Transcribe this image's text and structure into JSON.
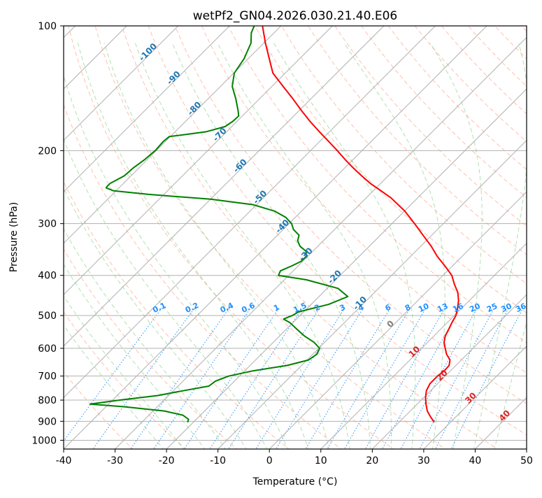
{
  "chart_data": {
    "type": "line",
    "title": "wetPf2_GN04.2026.030.21.40.E06",
    "xlabel": "Temperature (°C)",
    "ylabel": "Pressure (hPa)",
    "xlim": [
      -40,
      50
    ],
    "ylim_hpa": [
      1050,
      100
    ],
    "y_scale": "log",
    "grid": true,
    "x_ticks": [
      -40,
      -30,
      -20,
      -10,
      0,
      10,
      20,
      30,
      40,
      50
    ],
    "y_ticks": [
      100,
      200,
      300,
      400,
      500,
      600,
      700,
      800,
      900,
      1000
    ],
    "skew": "skew-T (isotherms slanted 45°)",
    "colors": {
      "temperature": "#ff0000",
      "dewpoint": "#008000",
      "isotherm": "#b0b0b0",
      "dry_adiabat": "#ff8c69",
      "moist_adiabat": "#7ccd7c",
      "mixing_ratio": "#1e90ff",
      "isotherm_label": "#1f77b4",
      "adiabat_label": "#d62728"
    },
    "series": [
      {
        "name": "",
        "kind": "temperature",
        "pressure_hpa": [
          904,
          880,
          850,
          820,
          790,
          760,
          730,
          700,
          680,
          660,
          640,
          620,
          600,
          580,
          560,
          540,
          520,
          500,
          480,
          460,
          440,
          420,
          400,
          380,
          360,
          340,
          320,
          300,
          280,
          260,
          250,
          240,
          230,
          220,
          210,
          200,
          190,
          180,
          170,
          160,
          150,
          140,
          130,
          120,
          110,
          100
        ],
        "temp_c": [
          26.8,
          25.2,
          23.3,
          21.8,
          20.4,
          19.2,
          18.5,
          18.5,
          18.8,
          18.7,
          17.8,
          16.0,
          14.6,
          13.2,
          12.2,
          11.6,
          10.9,
          10.3,
          9.2,
          7.9,
          6.2,
          3.9,
          1.7,
          -1.4,
          -4.8,
          -8.0,
          -11.7,
          -15.6,
          -19.9,
          -25.2,
          -28.5,
          -32.0,
          -35.2,
          -38.4,
          -41.6,
          -44.8,
          -48.3,
          -52.0,
          -55.8,
          -59.6,
          -63.5,
          -67.8,
          -72.4,
          -75.9,
          -79.7,
          -83.6
        ]
      },
      {
        "name": "",
        "kind": "dewpoint",
        "pressure_hpa": [
          905,
          890,
          870,
          850,
          830,
          818,
          800,
          780,
          760,
          740,
          720,
          700,
          680,
          660,
          640,
          620,
          600,
          580,
          560,
          540,
          520,
          510,
          500,
          490,
          470,
          450,
          430,
          410,
          400,
          390,
          380,
          370,
          360,
          350,
          340,
          330,
          320,
          310,
          300,
          290,
          280,
          270,
          262,
          255,
          250,
          246,
          244,
          240,
          230,
          220,
          210,
          200,
          190,
          185,
          183,
          180,
          175,
          170,
          165,
          160,
          150,
          140,
          130,
          120,
          110,
          104,
          100
        ],
        "dewpt_c": [
          -21.1,
          -21.5,
          -23.4,
          -27.8,
          -36.5,
          -43.6,
          -38.6,
          -32.1,
          -28.2,
          -24.0,
          -23.7,
          -22.1,
          -18.4,
          -12.8,
          -9.7,
          -9.2,
          -9.8,
          -12.1,
          -15.2,
          -17.9,
          -20.6,
          -22.5,
          -21.5,
          -21.0,
          -16.6,
          -14.4,
          -17.9,
          -25.7,
          -32.0,
          -32.5,
          -31.3,
          -30.3,
          -30.3,
          -31.3,
          -33.5,
          -35.0,
          -35.8,
          -38.0,
          -39.5,
          -41.8,
          -45.2,
          -50.7,
          -60.0,
          -73.0,
          -80.5,
          -82.5,
          -82.6,
          -82.6,
          -81.3,
          -81.1,
          -80.5,
          -80.2,
          -80.4,
          -80.2,
          -77.6,
          -73.9,
          -71.3,
          -70.8,
          -70.7,
          -71.9,
          -74.6,
          -77.7,
          -79.9,
          -80.8,
          -82.5,
          -84.4,
          -85.2
        ]
      }
    ],
    "isotherm_labels": [
      {
        "text": "-100",
        "value": -100,
        "pressure_hpa": 117
      },
      {
        "text": "-90",
        "value": -90,
        "pressure_hpa": 135
      },
      {
        "text": "-80",
        "value": -80,
        "pressure_hpa": 160
      },
      {
        "text": "-70",
        "value": -70,
        "pressure_hpa": 185
      },
      {
        "text": "-60",
        "value": -60,
        "pressure_hpa": 220
      },
      {
        "text": "-50",
        "value": -50,
        "pressure_hpa": 262
      },
      {
        "text": "-40",
        "value": -40,
        "pressure_hpa": 308
      },
      {
        "text": "-30",
        "value": -30,
        "pressure_hpa": 360
      },
      {
        "text": "-20",
        "value": -20,
        "pressure_hpa": 408
      },
      {
        "text": "-10",
        "value": -10,
        "pressure_hpa": 472
      }
    ],
    "mixing_ratio_labels": [
      "0.1",
      "0.2",
      "0.4",
      "0.6",
      "1",
      "1.5",
      "2",
      "3",
      "4",
      "6",
      "8",
      "10",
      "13",
      "16",
      "20",
      "25",
      "30",
      "36"
    ],
    "mixing_ratio_values_g_kg": [
      0.1,
      0.2,
      0.4,
      0.6,
      1,
      1.5,
      2,
      3,
      4,
      6,
      8,
      10,
      13,
      16,
      20,
      25,
      30,
      36
    ],
    "mixing_ratio_label_pressure_hpa": 485,
    "adiabat_labels": [
      {
        "text": "0",
        "value_c": 0,
        "pressure_hpa": 530,
        "color": "#808080"
      },
      {
        "text": "10",
        "value_c": 10,
        "pressure_hpa": 618,
        "color": "#d62728"
      },
      {
        "text": "20",
        "value_c": 20,
        "pressure_hpa": 705,
        "color": "#d62728"
      },
      {
        "text": "30",
        "value_c": 30,
        "pressure_hpa": 800,
        "color": "#d62728"
      },
      {
        "text": "40",
        "value_c": 40,
        "pressure_hpa": 882,
        "color": "#d62728"
      }
    ]
  }
}
